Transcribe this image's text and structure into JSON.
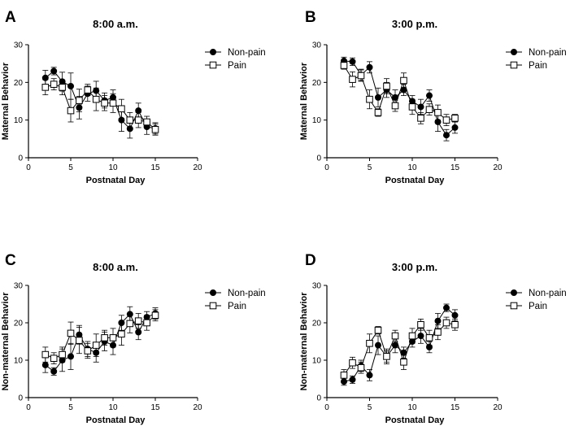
{
  "chart_data": [
    {
      "type": "line",
      "panel": "A",
      "title": "8:00 a.m.",
      "xlabel": "Postnatal Day",
      "ylabel": "Maternal Behavior",
      "xlim": [
        0,
        20
      ],
      "ylim": [
        0,
        30
      ],
      "xticks": [
        0,
        5,
        10,
        15,
        20
      ],
      "yticks": [
        0,
        10,
        20,
        30
      ],
      "legend_position": "top-right",
      "grid": false,
      "series": [
        {
          "name": "Non-pain",
          "marker": "filled-circle",
          "x": [
            2,
            3,
            4,
            5,
            6,
            7,
            8,
            9,
            10,
            11,
            12,
            13,
            14,
            15
          ],
          "y": [
            21.2,
            23.0,
            20.2,
            19.0,
            13.3,
            17.0,
            17.8,
            15.2,
            16.0,
            10.0,
            7.7,
            12.5,
            8.2,
            7.8
          ],
          "err": [
            2.0,
            1.0,
            2.5,
            3.5,
            3.0,
            2.0,
            2.5,
            2.0,
            2.0,
            3.0,
            2.5,
            2.0,
            2.0,
            1.5
          ]
        },
        {
          "name": "Pain",
          "marker": "open-square",
          "x": [
            2,
            3,
            4,
            5,
            6,
            7,
            8,
            9,
            10,
            11,
            12,
            13,
            14,
            15
          ],
          "y": [
            18.7,
            19.5,
            18.7,
            12.5,
            15.2,
            18.0,
            15.5,
            14.5,
            14.5,
            13.0,
            10.0,
            10.0,
            9.5,
            7.5
          ],
          "err": [
            2.0,
            1.5,
            2.0,
            3.0,
            3.0,
            1.5,
            3.0,
            2.0,
            2.5,
            2.5,
            2.0,
            2.0,
            1.5,
            1.5
          ]
        }
      ]
    },
    {
      "type": "line",
      "panel": "B",
      "title": "3:00 p.m.",
      "xlabel": "Postnatal Day",
      "ylabel": "Maternal Behavior",
      "xlim": [
        0,
        20
      ],
      "ylim": [
        0,
        30
      ],
      "xticks": [
        0,
        5,
        10,
        15,
        20
      ],
      "yticks": [
        0,
        10,
        20,
        30
      ],
      "legend_position": "top-right",
      "grid": false,
      "series": [
        {
          "name": "Non-pain",
          "marker": "filled-circle",
          "x": [
            2,
            3,
            4,
            5,
            6,
            7,
            8,
            9,
            10,
            11,
            12,
            13,
            14,
            15
          ],
          "y": [
            25.7,
            25.5,
            22.0,
            24.0,
            16.0,
            18.0,
            16.0,
            18.0,
            15.0,
            13.5,
            16.5,
            9.5,
            6.0,
            8.0
          ],
          "err": [
            1.0,
            1.0,
            1.5,
            1.5,
            2.5,
            2.0,
            2.0,
            1.5,
            1.5,
            2.0,
            1.5,
            2.5,
            1.5,
            1.5
          ]
        },
        {
          "name": "Pain",
          "marker": "open-square",
          "x": [
            2,
            3,
            4,
            5,
            6,
            7,
            8,
            9,
            10,
            11,
            12,
            13,
            14,
            15
          ],
          "y": [
            24.5,
            20.8,
            21.8,
            15.5,
            12.0,
            19.0,
            13.8,
            20.5,
            13.5,
            10.5,
            12.8,
            12.0,
            10.0,
            10.5
          ],
          "err": [
            1.0,
            2.0,
            1.5,
            2.5,
            1.0,
            2.0,
            1.5,
            2.0,
            2.0,
            1.5,
            1.5,
            2.0,
            1.5,
            1.0
          ]
        }
      ]
    },
    {
      "type": "line",
      "panel": "C",
      "title": "8:00 a.m.",
      "xlabel": "Postnatal Day",
      "ylabel": "Non-maternal Behavior",
      "xlim": [
        0,
        20
      ],
      "ylim": [
        0,
        30
      ],
      "xticks": [
        0,
        5,
        10,
        15,
        20
      ],
      "yticks": [
        0,
        10,
        20,
        30
      ],
      "legend_position": "top-right",
      "grid": false,
      "series": [
        {
          "name": "Non-pain",
          "marker": "filled-circle",
          "x": [
            2,
            3,
            4,
            5,
            6,
            7,
            8,
            9,
            10,
            11,
            12,
            13,
            14,
            15
          ],
          "y": [
            8.7,
            7.0,
            10.0,
            11.0,
            16.8,
            13.0,
            12.0,
            15.0,
            14.0,
            20.0,
            22.3,
            17.5,
            21.5,
            22.5
          ],
          "err": [
            2.0,
            1.0,
            3.0,
            3.5,
            2.5,
            2.0,
            2.5,
            2.5,
            2.5,
            2.0,
            2.0,
            2.0,
            1.5,
            1.5
          ]
        },
        {
          "name": "Pain",
          "marker": "open-square",
          "x": [
            2,
            3,
            4,
            5,
            6,
            7,
            8,
            9,
            10,
            11,
            12,
            13,
            14,
            15
          ],
          "y": [
            11.5,
            10.5,
            11.5,
            17.2,
            15.3,
            12.5,
            14.0,
            16.0,
            16.0,
            17.0,
            19.8,
            20.5,
            20.0,
            22.0
          ],
          "err": [
            2.0,
            1.5,
            2.0,
            3.0,
            3.5,
            2.0,
            3.0,
            2.0,
            2.5,
            3.0,
            2.5,
            2.0,
            2.0,
            1.5
          ]
        }
      ]
    },
    {
      "type": "line",
      "panel": "D",
      "title": "3:00 p.m.",
      "xlabel": "Postnatal Day",
      "ylabel": "Non-maternal Behavior",
      "xlim": [
        0,
        20
      ],
      "ylim": [
        0,
        30
      ],
      "xticks": [
        0,
        5,
        10,
        15,
        20
      ],
      "yticks": [
        0,
        10,
        20,
        30
      ],
      "legend_position": "top-right",
      "grid": false,
      "series": [
        {
          "name": "Non-pain",
          "marker": "filled-circle",
          "x": [
            2,
            3,
            4,
            5,
            6,
            7,
            8,
            9,
            10,
            11,
            12,
            13,
            14,
            15
          ],
          "y": [
            4.3,
            4.8,
            8.5,
            6.0,
            14.0,
            11.0,
            14.0,
            12.0,
            15.0,
            16.5,
            13.5,
            20.5,
            24.0,
            22.0
          ],
          "err": [
            1.0,
            1.0,
            1.5,
            1.5,
            2.5,
            1.5,
            2.0,
            1.5,
            1.5,
            2.0,
            1.5,
            2.0,
            1.0,
            1.5
          ]
        },
        {
          "name": "Pain",
          "marker": "open-square",
          "x": [
            2,
            3,
            4,
            5,
            6,
            7,
            8,
            9,
            10,
            11,
            12,
            13,
            14,
            15
          ],
          "y": [
            6.0,
            9.3,
            8.0,
            14.5,
            18.0,
            11.0,
            16.5,
            9.5,
            16.5,
            19.5,
            16.0,
            17.5,
            20.0,
            19.5
          ],
          "err": [
            1.5,
            1.5,
            1.5,
            2.5,
            1.0,
            2.0,
            1.5,
            2.0,
            2.0,
            1.5,
            2.0,
            2.0,
            1.5,
            1.5
          ]
        }
      ]
    }
  ]
}
